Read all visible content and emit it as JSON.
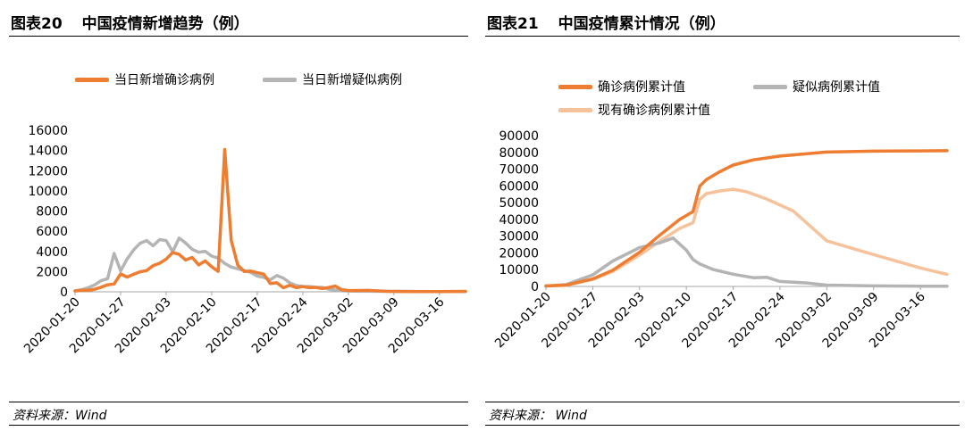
{
  "left": {
    "fig_num": "图表20",
    "fig_title": "中国疫情新增趋势（例）",
    "source": "资料来源：Wind"
  },
  "right": {
    "fig_num": "图表21",
    "fig_title": "中国疫情累计情况（例）",
    "source": "资料来源：  Wind"
  },
  "colors": {
    "confirmed": "#ee7d31",
    "suspected": "#b4b4b4",
    "existing": "#f5c29b"
  },
  "chart_data": [
    {
      "type": "line",
      "title": "",
      "x_tick_labels": [
        "2020-01-20",
        "2020-01-27",
        "2020-02-03",
        "2020-02-10",
        "2020-02-17",
        "2020-02-24",
        "2020-03-02",
        "2020-03-09",
        "2020-03-16"
      ],
      "x_range": [
        "2020-01-20",
        "2020-03-20"
      ],
      "ylim": [
        0,
        16000
      ],
      "y_ticks": [
        0,
        2000,
        4000,
        6000,
        8000,
        10000,
        12000,
        14000,
        16000
      ],
      "y_tick_labels": [
        "0",
        "2000",
        "4000",
        "6000",
        "8000",
        "10000",
        "12000",
        "14000",
        "16000"
      ],
      "grid": false,
      "legend_position": "top",
      "series": [
        {
          "name": "当日新增确诊病例",
          "x": [
            "2020-01-20",
            "2020-01-21",
            "2020-01-22",
            "2020-01-23",
            "2020-01-24",
            "2020-01-25",
            "2020-01-26",
            "2020-01-27",
            "2020-01-28",
            "2020-01-29",
            "2020-01-30",
            "2020-01-31",
            "2020-02-01",
            "2020-02-02",
            "2020-02-03",
            "2020-02-04",
            "2020-02-05",
            "2020-02-06",
            "2020-02-07",
            "2020-02-08",
            "2020-02-09",
            "2020-02-10",
            "2020-02-11",
            "2020-02-12",
            "2020-02-13",
            "2020-02-14",
            "2020-02-15",
            "2020-02-16",
            "2020-02-17",
            "2020-02-18",
            "2020-02-19",
            "2020-02-20",
            "2020-02-21",
            "2020-02-22",
            "2020-02-23",
            "2020-02-24",
            "2020-02-25",
            "2020-02-26",
            "2020-02-27",
            "2020-02-28",
            "2020-02-29",
            "2020-03-01",
            "2020-03-02",
            "2020-03-03",
            "2020-03-05",
            "2020-03-08",
            "2020-03-12",
            "2020-03-16",
            "2020-03-20"
          ],
          "values": [
            80,
            150,
            140,
            250,
            450,
            690,
            770,
            1770,
            1460,
            1740,
            1980,
            2100,
            2590,
            2830,
            3240,
            3890,
            3700,
            3150,
            3400,
            2660,
            3060,
            2480,
            2020,
            14100,
            5090,
            2640,
            2010,
            2050,
            1890,
            1750,
            820,
            890,
            400,
            650,
            410,
            510,
            410,
            430,
            330,
            430,
            570,
            200,
            130,
            120,
            140,
            40,
            20,
            20,
            40
          ]
        },
        {
          "name": "当日新增疑似病例",
          "x": [
            "2020-01-20",
            "2020-01-21",
            "2020-01-22",
            "2020-01-23",
            "2020-01-24",
            "2020-01-25",
            "2020-01-26",
            "2020-01-27",
            "2020-01-28",
            "2020-01-29",
            "2020-01-30",
            "2020-01-31",
            "2020-02-01",
            "2020-02-02",
            "2020-02-03",
            "2020-02-04",
            "2020-02-05",
            "2020-02-06",
            "2020-02-07",
            "2020-02-08",
            "2020-02-09",
            "2020-02-10",
            "2020-02-11",
            "2020-02-12",
            "2020-02-13",
            "2020-02-14",
            "2020-02-15",
            "2020-02-16",
            "2020-02-17",
            "2020-02-18",
            "2020-02-19",
            "2020-02-20",
            "2020-02-21",
            "2020-02-22",
            "2020-02-23",
            "2020-02-24",
            "2020-02-25",
            "2020-02-26",
            "2020-02-27",
            "2020-02-28",
            "2020-02-29",
            "2020-03-01",
            "2020-03-02",
            "2020-03-03",
            "2020-03-06",
            "2020-03-10",
            "2020-03-15",
            "2020-03-20"
          ],
          "values": [
            100,
            200,
            400,
            680,
            1100,
            1300,
            3800,
            2070,
            3250,
            4150,
            4810,
            5070,
            4560,
            5170,
            5070,
            3970,
            5330,
            4830,
            4210,
            3920,
            4010,
            3540,
            3340,
            2810,
            2450,
            2280,
            2100,
            1920,
            1560,
            1430,
            1190,
            1610,
            1360,
            880,
            620,
            530,
            520,
            450,
            430,
            250,
            180,
            100,
            80,
            70,
            50,
            40,
            30,
            30
          ]
        }
      ]
    },
    {
      "type": "line",
      "title": "",
      "x_tick_labels": [
        "2020-01-20",
        "2020-01-27",
        "2020-02-03",
        "2020-02-10",
        "2020-02-17",
        "2020-02-24",
        "2020-03-02",
        "2020-03-09",
        "2020-03-16"
      ],
      "x_range": [
        "2020-01-20",
        "2020-03-20"
      ],
      "ylim": [
        0,
        90000
      ],
      "y_ticks": [
        0,
        10000,
        20000,
        30000,
        40000,
        50000,
        60000,
        70000,
        80000,
        90000
      ],
      "y_tick_labels": [
        "0",
        "10000",
        "20000",
        "30000",
        "40000",
        "50000",
        "60000",
        "70000",
        "80000",
        "90000"
      ],
      "grid": false,
      "legend_position": "top",
      "series": [
        {
          "name": "确诊病例累计值",
          "x": [
            "2020-01-20",
            "2020-01-23",
            "2020-01-27",
            "2020-01-30",
            "2020-02-03",
            "2020-02-06",
            "2020-02-09",
            "2020-02-11",
            "2020-02-12",
            "2020-02-13",
            "2020-02-15",
            "2020-02-17",
            "2020-02-20",
            "2020-02-24",
            "2020-03-02",
            "2020-03-09",
            "2020-03-16",
            "2020-03-20"
          ],
          "values": [
            300,
            800,
            4500,
            9700,
            20400,
            30500,
            40000,
            44700,
            59800,
            63800,
            68500,
            72400,
            75500,
            77800,
            80200,
            80750,
            80880,
            81000
          ]
        },
        {
          "name": "疑似病例累计值",
          "x": [
            "2020-01-20",
            "2020-01-23",
            "2020-01-27",
            "2020-01-30",
            "2020-02-03",
            "2020-02-06",
            "2020-02-08",
            "2020-02-10",
            "2020-02-11",
            "2020-02-12",
            "2020-02-14",
            "2020-02-17",
            "2020-02-20",
            "2020-02-22",
            "2020-02-24",
            "2020-02-28",
            "2020-03-02",
            "2020-03-09",
            "2020-03-16",
            "2020-03-20"
          ],
          "values": [
            200,
            1100,
            6900,
            15200,
            23200,
            26000,
            28900,
            21700,
            16100,
            13400,
            10100,
            7300,
            5200,
            5500,
            3000,
            2100,
            800,
            300,
            150,
            100
          ]
        },
        {
          "name": "现有确诊病例累计值",
          "x": [
            "2020-01-20",
            "2020-01-23",
            "2020-01-27",
            "2020-01-30",
            "2020-02-03",
            "2020-02-06",
            "2020-02-09",
            "2020-02-11",
            "2020-02-12",
            "2020-02-13",
            "2020-02-15",
            "2020-02-17",
            "2020-02-19",
            "2020-02-22",
            "2020-02-26",
            "2020-03-02",
            "2020-03-09",
            "2020-03-16",
            "2020-03-20"
          ],
          "values": [
            250,
            700,
            4200,
            9000,
            18700,
            27000,
            34600,
            38000,
            52000,
            55400,
            57000,
            58000,
            56500,
            52200,
            45000,
            27200,
            19000,
            11000,
            7200
          ]
        }
      ]
    }
  ]
}
